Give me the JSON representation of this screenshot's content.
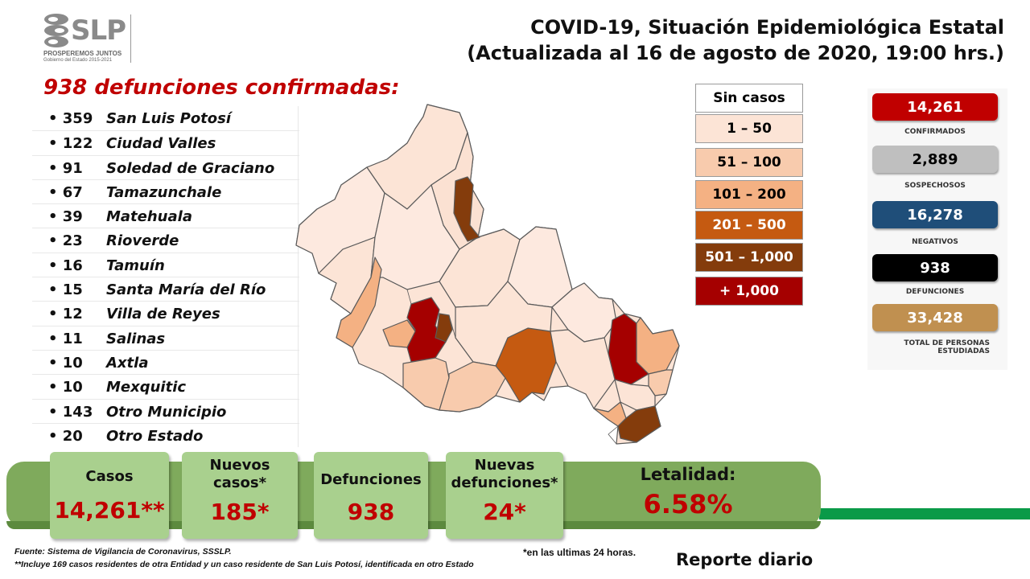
{
  "logo": {
    "text": "SLP",
    "tagline": "PROSPEREMOS JUNTOS",
    "sub": "Gobierno del Estado 2015-2021"
  },
  "header": {
    "title_line1": "COVID-19, Situación Epidemiológica Estatal",
    "title_line2": "(Actualizada al 16 de agosto de 2020, 19:00 hrs.)"
  },
  "deaths": {
    "heading": "938 defunciones confirmadas:",
    "items": [
      {
        "count": "• 359",
        "name": "San Luis Potosí"
      },
      {
        "count": "• 122",
        "name": "Ciudad Valles"
      },
      {
        "count": "• 91",
        "name": "Soledad de Graciano"
      },
      {
        "count": "• 67",
        "name": "Tamazunchale"
      },
      {
        "count": "• 39",
        "name": "Matehuala"
      },
      {
        "count": "• 23",
        "name": "Rioverde"
      },
      {
        "count": "• 16",
        "name": "Tamuín"
      },
      {
        "count": "• 15",
        "name": "Santa María del Río"
      },
      {
        "count": "• 12",
        "name": "Villa de Reyes"
      },
      {
        "count": "• 11",
        "name": "Salinas"
      },
      {
        "count": "• 10",
        "name": "Axtla"
      },
      {
        "count": "• 10",
        "name": "Mexquitic"
      },
      {
        "count": "• 143",
        "name": "Otro Municipio"
      },
      {
        "count": "• 20",
        "name": "Otro Estado"
      }
    ]
  },
  "legend": {
    "items": [
      {
        "label": "Sin casos",
        "color": "#ffffff",
        "text_color": "#000000"
      },
      {
        "label": "1 – 50",
        "color": "#fce4d6",
        "text_color": "#000000"
      },
      {
        "label": "51 – 100",
        "color": "#f8cbad",
        "text_color": "#000000"
      },
      {
        "label": "101 – 200",
        "color": "#f4b183",
        "text_color": "#000000"
      },
      {
        "label": "201 – 500",
        "color": "#c55a11",
        "text_color": "#ffffff"
      },
      {
        "label": "501 – 1,000",
        "color": "#843c0c",
        "text_color": "#ffffff"
      },
      {
        "label": "+ 1,000",
        "color": "#a50000",
        "text_color": "#ffffff"
      }
    ]
  },
  "stats": {
    "confirmed": {
      "value": "14,261",
      "label": "CONFIRMADOS",
      "color": "#c00000"
    },
    "suspected": {
      "value": "2,889",
      "label": "SOSPECHOSOS",
      "color": "#bfbfbf"
    },
    "negative": {
      "value": "16,278",
      "label": "NEGATIVOS",
      "color": "#1f4e79"
    },
    "deaths": {
      "value": "938",
      "label": "DEFUNCIONES",
      "color": "#000000"
    },
    "studied": {
      "value": "33,428",
      "label_line1": "TOTAL DE PERSONAS",
      "label_line2": "ESTUDIADAS",
      "color": "#c09050"
    }
  },
  "summary": {
    "cases_label": "Casos",
    "cases_value": "14,261**",
    "new_cases_label_line1": "Nuevos",
    "new_cases_label_line2": "casos*",
    "new_cases_value": "185*",
    "deaths_label": "Defunciones",
    "deaths_value": "938",
    "new_deaths_label_line1": "Nuevas",
    "new_deaths_label_line2": "defunciones*",
    "new_deaths_value": "24*",
    "lethality_label": "Letalidad:",
    "lethality_value": "6.58%"
  },
  "footer": {
    "source": "Fuente: Sistema de Vigilancia  de Coronavirus, SSSLP.",
    "note": "**Incluye 169 casos residentes de otra Entidad  y un caso residente de San Luis Potosí, identificada  en otro Estado",
    "last24": "*en las ultimas 24 horas.",
    "report": "Reporte diario"
  }
}
